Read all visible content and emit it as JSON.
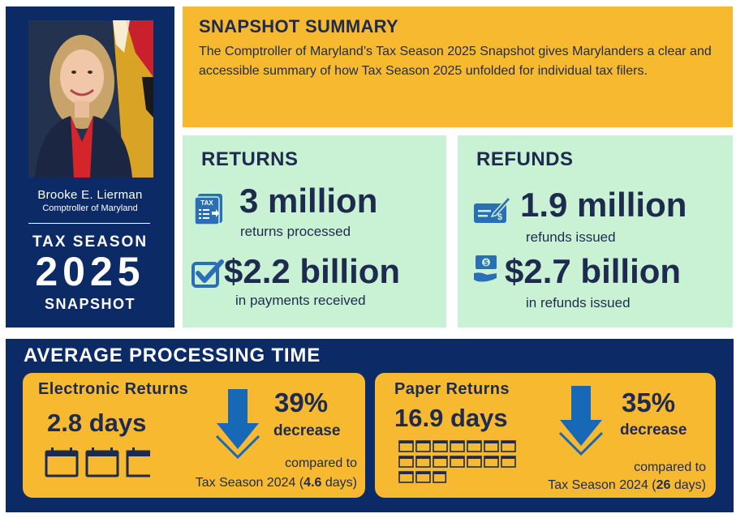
{
  "profile": {
    "name": "Brooke E. Lierman",
    "role": "Comptroller of Maryland",
    "tax_season": "TAX SEASON",
    "year": "2025",
    "snapshot": "SNAPSHOT"
  },
  "summary": {
    "title": "SNAPSHOT SUMMARY",
    "text": "The Comptroller of Maryland’s Tax Season 2025 Snapshot gives Marylanders a clear and accessible summary of how Tax Season 2025 unfolded for individual tax filers."
  },
  "returns": {
    "title": "RETURNS",
    "processed_value": "3 million",
    "processed_label": "returns processed",
    "payments_value": "$2.2 billion",
    "payments_label": "in payments received"
  },
  "refunds": {
    "title": "REFUNDS",
    "issued_count": "1.9 million",
    "issued_count_label": "refunds issued",
    "issued_amount": "$2.7 billion",
    "issued_amount_label": "in refunds issued"
  },
  "processing": {
    "title": "AVERAGE PROCESSING TIME",
    "electronic": {
      "title": "Electronic Returns",
      "days": "2.8 days",
      "percent": "39%",
      "change": "decrease",
      "compared": "compared to",
      "baseline_prefix": "Tax Season 2024 (",
      "baseline_days": "4.6",
      "baseline_suffix": " days)",
      "calendar_count": 2.8
    },
    "paper": {
      "title": "Paper Returns",
      "days": "16.9 days",
      "percent": "35%",
      "change": "decrease",
      "compared": "compared to",
      "baseline_prefix": "Tax Season 2024 (",
      "baseline_days": "26",
      "baseline_suffix": " days)",
      "calendar_count": 16.9
    }
  },
  "colors": {
    "navy": "#0b2a66",
    "gold": "#f7b92f",
    "green": "#c9f2d4",
    "text": "#1e2b4f",
    "icon_blue": "#2a6fb6",
    "arrow_blue": "#1769b8"
  }
}
